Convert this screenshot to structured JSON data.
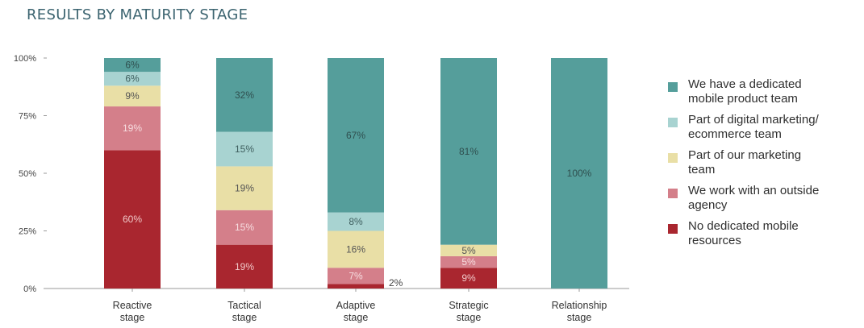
{
  "title": "RESULTS BY MATURITY STAGE",
  "chart_data": {
    "type": "bar",
    "stacked": true,
    "title": "RESULTS BY MATURITY STAGE",
    "xlabel": "",
    "ylabel": "",
    "ylim": [
      0,
      100
    ],
    "y_ticks": [
      "0%",
      "25%",
      "50%",
      "75%",
      "100%"
    ],
    "y_tick_values": [
      0,
      25,
      50,
      75,
      100
    ],
    "categories": [
      [
        "Reactive",
        "stage"
      ],
      [
        "Tactical",
        "stage"
      ],
      [
        "Adaptive",
        "stage"
      ],
      [
        "Strategic",
        "stage"
      ],
      [
        "Relationship",
        "stage"
      ]
    ],
    "legend_position": "right",
    "grid": false,
    "series": [
      {
        "name": "No dedicated mobile resources",
        "legend_lines": [
          "No dedicated mobile",
          "resources"
        ],
        "color": "#a9262f",
        "label_color": "#f0c8c8",
        "values": [
          60,
          19,
          2,
          9,
          0
        ],
        "labels": [
          "60%",
          "19%",
          "2%",
          "9%",
          ""
        ]
      },
      {
        "name": "We work with an outside agency",
        "legend_lines": [
          "We work with an outside",
          "agency"
        ],
        "color": "#d47f8a",
        "label_color": "#f7dde0",
        "values": [
          19,
          15,
          7,
          5,
          0
        ],
        "labels": [
          "19%",
          "15%",
          "7%",
          "5%",
          ""
        ]
      },
      {
        "name": "Part of our marketing team",
        "legend_lines": [
          "Part of our marketing",
          "team"
        ],
        "color": "#e9dfa6",
        "label_color": "#555555",
        "values": [
          9,
          19,
          16,
          5,
          0
        ],
        "labels": [
          "9%",
          "19%",
          "16%",
          "5%",
          ""
        ]
      },
      {
        "name": "Part of digital marketing/ ecommerce team",
        "legend_lines": [
          "Part of digital marketing/",
          "ecommerce team"
        ],
        "color": "#a8d3d1",
        "label_color": "#3f5f5f",
        "values": [
          6,
          15,
          8,
          0,
          0
        ],
        "labels": [
          "6%",
          "15%",
          "8%",
          "",
          ""
        ]
      },
      {
        "name": "We have a dedicated mobile product team",
        "legend_lines": [
          "We have a dedicated",
          "mobile product team"
        ],
        "color": "#559e9b",
        "label_color": "#2f4f4f",
        "values": [
          6,
          32,
          67,
          81,
          100
        ],
        "labels": [
          "6%",
          "32%",
          "67%",
          "81%",
          "100%"
        ]
      }
    ],
    "outside_labels": [
      {
        "category_index": 2,
        "text": "2%"
      }
    ]
  }
}
